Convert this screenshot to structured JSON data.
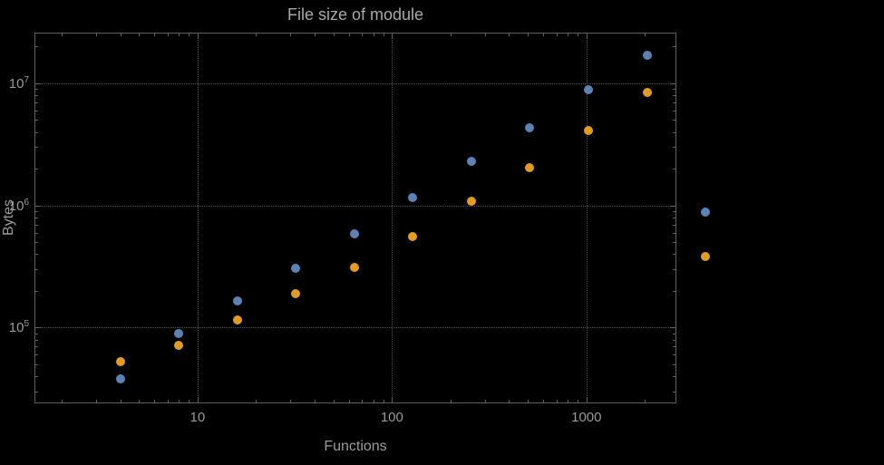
{
  "chart_data": {
    "type": "scatter",
    "title": "File size of module",
    "xlabel": "Functions",
    "ylabel": "Bytes",
    "x_scale": "log",
    "y_scale": "log",
    "xlim": [
      1.45,
      2900
    ],
    "ylim": [
      24000,
      26000000
    ],
    "grid": "dotted",
    "legend": "none",
    "x_ticks": [
      {
        "v": 10,
        "label": "10"
      },
      {
        "v": 100,
        "label": "100"
      },
      {
        "v": 1000,
        "label": "1000"
      }
    ],
    "y_ticks": [
      {
        "v": 100000,
        "base": "10",
        "exp": "5"
      },
      {
        "v": 1000000,
        "base": "10",
        "exp": "6"
      },
      {
        "v": 10000000,
        "base": "10",
        "exp": "7"
      }
    ],
    "colors": {
      "background": "#000000",
      "text": "#9a9a9a",
      "frame": "#606060",
      "grid": "#565656",
      "series_blue": "#5e81b5",
      "series_orange": "#e19c24"
    },
    "series": [
      {
        "name": "blue-series",
        "color": "#5e81b5",
        "points": [
          [
            4,
            38000
          ],
          [
            8,
            90000
          ],
          [
            16,
            165000
          ],
          [
            32,
            305000
          ],
          [
            64,
            585000
          ],
          [
            128,
            1160000
          ],
          [
            256,
            2300000
          ],
          [
            512,
            4300000
          ],
          [
            1024,
            8900000
          ],
          [
            2048,
            17000000
          ],
          [
            4096,
            880000
          ]
        ]
      },
      {
        "name": "orange-series",
        "color": "#e19c24",
        "points": [
          [
            4,
            53000
          ],
          [
            8,
            72000
          ],
          [
            16,
            115000
          ],
          [
            32,
            190000
          ],
          [
            64,
            310000
          ],
          [
            128,
            560000
          ],
          [
            256,
            1080000
          ],
          [
            512,
            2050000
          ],
          [
            1024,
            4100000
          ],
          [
            2048,
            8400000
          ],
          [
            4096,
            380000
          ]
        ]
      }
    ]
  }
}
